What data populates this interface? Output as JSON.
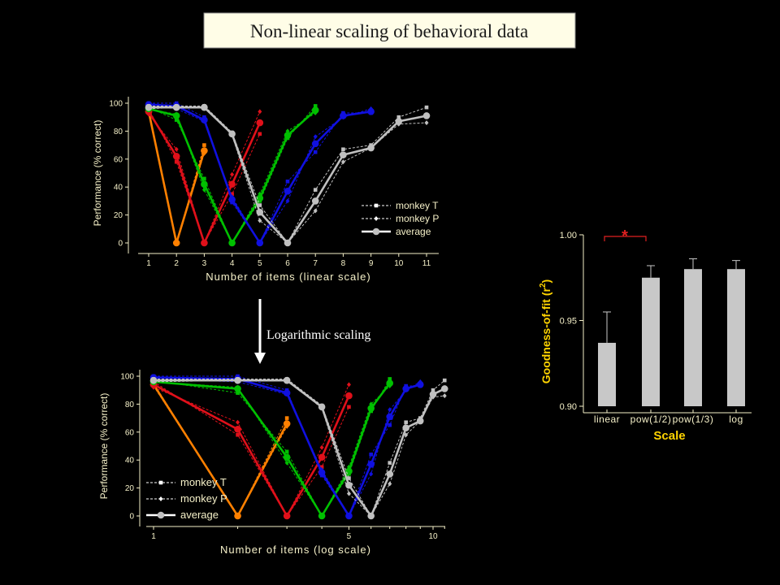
{
  "page": {
    "title": "Non-linear scaling of behavioral data",
    "arrow_label": "Logarithmic scaling"
  },
  "colors": {
    "background": "#000000",
    "title_box_bg": "#fffde7",
    "title_text": "#1a1a1a",
    "orange": "#ff8000",
    "red": "#e0101a",
    "green": "#00c000",
    "blue": "#1010e0",
    "gray": "#c0c0c0",
    "axis": "#f5f0c8",
    "star": "#e02020"
  },
  "chart_data": [
    {
      "id": "linear",
      "type": "line",
      "xscale": "linear",
      "xlabel": "Number of items (linear scale)",
      "ylabel": "Performance (% correct)",
      "xlim": [
        0.5,
        11.5
      ],
      "ylim": [
        0,
        100
      ],
      "xticks": [
        1,
        2,
        3,
        4,
        5,
        6,
        7,
        8,
        9,
        10,
        11
      ],
      "yticks": [
        0,
        20,
        40,
        60,
        80,
        100
      ],
      "legend": [
        "monkey T",
        "monkey P",
        "average"
      ],
      "legend_position": "bottom-right",
      "series": [
        {
          "color": "orange",
          "monkeyT": [
            [
              1,
              95
            ],
            [
              2,
              0
            ],
            [
              3,
              70
            ]
          ],
          "monkeyP": [
            [
              1,
              93
            ],
            [
              2,
              0
            ],
            [
              3,
              64
            ]
          ],
          "average": [
            [
              1,
              94
            ],
            [
              2,
              0
            ],
            [
              3,
              66
            ]
          ]
        },
        {
          "color": "red",
          "monkeyT": [
            [
              1,
              96
            ],
            [
              2,
              58
            ],
            [
              3,
              0
            ],
            [
              4,
              35
            ],
            [
              5,
              78
            ]
          ],
          "monkeyP": [
            [
              1,
              92
            ],
            [
              2,
              67
            ],
            [
              3,
              0
            ],
            [
              4,
              49
            ],
            [
              5,
              94
            ]
          ],
          "average": [
            [
              1,
              94
            ],
            [
              2,
              62
            ],
            [
              3,
              0
            ],
            [
              4,
              42
            ],
            [
              5,
              86
            ]
          ]
        },
        {
          "color": "green",
          "monkeyT": [
            [
              1,
              97
            ],
            [
              2,
              88
            ],
            [
              3,
              46
            ],
            [
              4,
              0
            ],
            [
              5,
              30
            ],
            [
              6,
              75
            ],
            [
              7,
              98
            ]
          ],
          "monkeyP": [
            [
              1,
              96
            ],
            [
              2,
              92
            ],
            [
              3,
              38
            ],
            [
              4,
              0
            ],
            [
              5,
              35
            ],
            [
              6,
              80
            ],
            [
              7,
              93
            ]
          ],
          "average": [
            [
              1,
              96
            ],
            [
              2,
              91
            ],
            [
              3,
              42
            ],
            [
              4,
              0
            ],
            [
              5,
              32
            ],
            [
              6,
              77
            ],
            [
              7,
              95
            ]
          ]
        },
        {
          "color": "blue",
          "monkeyT": [
            [
              1,
              100
            ],
            [
              2,
              100
            ],
            [
              3,
              90
            ],
            [
              4,
              29
            ],
            [
              5,
              0
            ],
            [
              6,
              44
            ],
            [
              7,
              65
            ],
            [
              8,
              93
            ],
            [
              9,
              93
            ]
          ],
          "monkeyP": [
            [
              1,
              98
            ],
            [
              2,
              96
            ],
            [
              3,
              87
            ],
            [
              4,
              33
            ],
            [
              5,
              0
            ],
            [
              6,
              30
            ],
            [
              7,
              76
            ],
            [
              8,
              90
            ],
            [
              9,
              96
            ]
          ],
          "average": [
            [
              1,
              99
            ],
            [
              2,
              98
            ],
            [
              3,
              88
            ],
            [
              4,
              31
            ],
            [
              5,
              0
            ],
            [
              6,
              37
            ],
            [
              7,
              71
            ],
            [
              8,
              91
            ],
            [
              9,
              94
            ]
          ]
        },
        {
          "color": "gray",
          "monkeyT": [
            [
              1,
              98
            ],
            [
              2,
              98
            ],
            [
              3,
              98
            ],
            [
              4,
              79
            ],
            [
              5,
              27
            ],
            [
              6,
              0
            ],
            [
              7,
              38
            ],
            [
              8,
              67
            ],
            [
              9,
              70
            ],
            [
              10,
              90
            ],
            [
              11,
              97
            ]
          ],
          "monkeyP": [
            [
              1,
              96
            ],
            [
              2,
              97
            ],
            [
              3,
              98
            ],
            [
              4,
              77
            ],
            [
              5,
              16
            ],
            [
              6,
              0
            ],
            [
              7,
              23
            ],
            [
              8,
              58
            ],
            [
              9,
              68
            ],
            [
              10,
              85
            ],
            [
              11,
              86
            ]
          ],
          "average": [
            [
              1,
              97
            ],
            [
              2,
              97
            ],
            [
              3,
              97
            ],
            [
              4,
              78
            ],
            [
              5,
              22
            ],
            [
              6,
              0
            ],
            [
              7,
              30
            ],
            [
              8,
              63
            ],
            [
              9,
              68
            ],
            [
              10,
              87
            ],
            [
              11,
              91
            ]
          ]
        }
      ]
    },
    {
      "id": "log",
      "type": "line",
      "xscale": "log",
      "xlabel": "Number of items (log scale)",
      "ylabel": "Performance (% correct)",
      "xlim": [
        0.9,
        12
      ],
      "ylim": [
        0,
        100
      ],
      "xticks": [
        1,
        5,
        10
      ],
      "yticks": [
        0,
        20,
        40,
        60,
        80,
        100
      ],
      "legend": [
        "monkey T",
        "monkey P",
        "average"
      ],
      "legend_position": "bottom-left",
      "series": "same as linear panel"
    },
    {
      "id": "goodness",
      "type": "bar",
      "categories": [
        "linear",
        "pow(1/2)",
        "pow(1/3)",
        "log"
      ],
      "values": [
        0.937,
        0.975,
        0.98,
        0.98
      ],
      "errors": [
        0.018,
        0.007,
        0.006,
        0.005
      ],
      "ylabel": "Goodness-of-fit (r",
      "ylabel_sup": "2",
      "ylabel_end": ")",
      "xlabel": "Scale",
      "ylim": [
        0.9,
        1.0
      ],
      "yticks": [
        0.9,
        0.95,
        1.0
      ],
      "ytick_labels": [
        "0.90",
        "0.95",
        "1.00"
      ],
      "bar_color": "#c8c8c8",
      "significance": {
        "between": [
          "linear",
          "pow(1/2)"
        ],
        "mark": "*"
      }
    }
  ]
}
